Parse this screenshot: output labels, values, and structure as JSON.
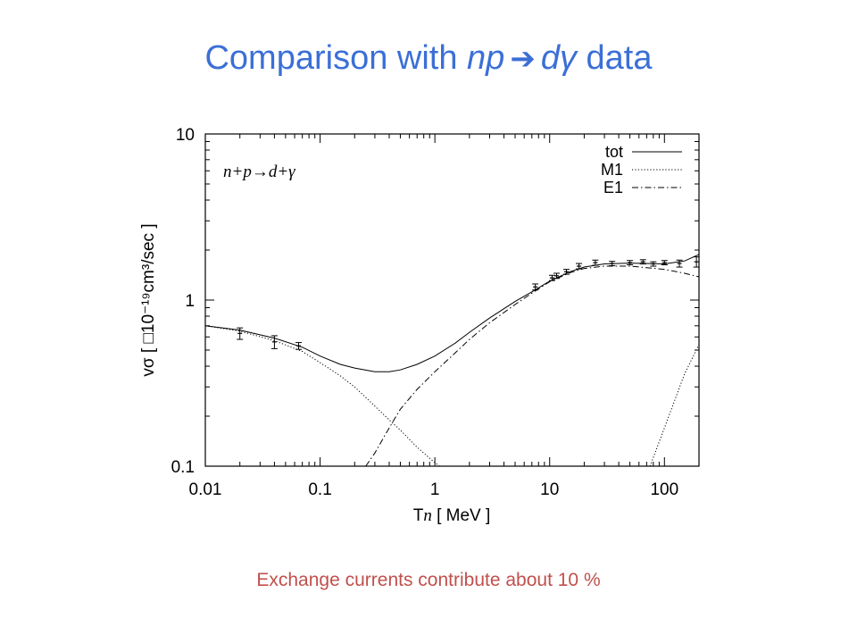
{
  "slide": {
    "title_prefix": "Comparison with ",
    "title_np": "np",
    "title_arrow": "➔",
    "title_dgamma": "dγ",
    "title_suffix": " data",
    "caption": "Exchange currents contribute about 10 %"
  },
  "chart_data": {
    "type": "line",
    "x_scale": "log",
    "y_scale": "log",
    "xlim": [
      0.01,
      200
    ],
    "ylim": [
      0.1,
      10
    ],
    "xlabel_prefix": "T",
    "xlabel_sub": "n",
    "xlabel_suffix": " [ MeV ]",
    "ylabel": "vσ [ □10⁻¹⁹cm³/sec ]",
    "x_ticks": [
      {
        "value": 0.01,
        "label": "0.01"
      },
      {
        "value": 0.1,
        "label": "0.1"
      },
      {
        "value": 1,
        "label": "1"
      },
      {
        "value": 10,
        "label": "10"
      },
      {
        "value": 100,
        "label": "100"
      }
    ],
    "y_ticks": [
      {
        "value": 0.1,
        "label": "0.1"
      },
      {
        "value": 1,
        "label": "1"
      },
      {
        "value": 10,
        "label": "10"
      }
    ],
    "annotation": "n+p→d+γ",
    "legend_position": "top-right",
    "series": [
      {
        "name": "tot",
        "style": "solid",
        "x": [
          0.01,
          0.02,
          0.04,
          0.07,
          0.1,
          0.15,
          0.2,
          0.3,
          0.4,
          0.5,
          0.7,
          1,
          1.5,
          2,
          3,
          5,
          7,
          10,
          15,
          20,
          30,
          50,
          100,
          150,
          200
        ],
        "y": [
          0.7,
          0.66,
          0.59,
          0.52,
          0.46,
          0.41,
          0.39,
          0.37,
          0.37,
          0.38,
          0.41,
          0.46,
          0.55,
          0.64,
          0.78,
          0.98,
          1.12,
          1.3,
          1.48,
          1.58,
          1.65,
          1.67,
          1.65,
          1.72,
          1.88
        ]
      },
      {
        "name": "M1",
        "style": "dotted",
        "x": [
          0.01,
          0.02,
          0.04,
          0.07,
          0.1,
          0.15,
          0.2,
          0.3,
          0.4,
          0.5,
          0.7,
          1.0,
          1.1
        ],
        "y": [
          0.7,
          0.65,
          0.57,
          0.49,
          0.42,
          0.35,
          0.3,
          0.23,
          0.19,
          0.165,
          0.13,
          0.105,
          0.1
        ],
        "x2": [
          75,
          100,
          150,
          200
        ],
        "y2": [
          0.1,
          0.17,
          0.36,
          0.54
        ]
      },
      {
        "name": "E1",
        "style": "dashdot",
        "x": [
          0.25,
          0.3,
          0.4,
          0.5,
          0.7,
          1,
          1.5,
          2,
          3,
          5,
          7,
          10,
          15,
          20,
          30,
          50,
          100,
          150,
          200
        ],
        "y": [
          0.1,
          0.12,
          0.17,
          0.22,
          0.29,
          0.37,
          0.48,
          0.58,
          0.73,
          0.94,
          1.1,
          1.29,
          1.46,
          1.55,
          1.6,
          1.6,
          1.53,
          1.45,
          1.38
        ]
      }
    ],
    "data_points": [
      {
        "x": 0.02,
        "y": 0.63,
        "err": 0.05
      },
      {
        "x": 0.04,
        "y": 0.56,
        "err": 0.05
      },
      {
        "x": 0.065,
        "y": 0.53,
        "err": 0.025
      },
      {
        "x": 7.5,
        "y": 1.2,
        "err": 0.05
      },
      {
        "x": 10.5,
        "y": 1.36,
        "err": 0.05
      },
      {
        "x": 11.5,
        "y": 1.4,
        "err": 0.05
      },
      {
        "x": 14,
        "y": 1.48,
        "err": 0.05
      },
      {
        "x": 18,
        "y": 1.6,
        "err": 0.06
      },
      {
        "x": 25,
        "y": 1.68,
        "err": 0.06
      },
      {
        "x": 35,
        "y": 1.66,
        "err": 0.05
      },
      {
        "x": 50,
        "y": 1.68,
        "err": 0.05
      },
      {
        "x": 65,
        "y": 1.7,
        "err": 0.05
      },
      {
        "x": 80,
        "y": 1.65,
        "err": 0.05
      },
      {
        "x": 100,
        "y": 1.68,
        "err": 0.05
      },
      {
        "x": 135,
        "y": 1.66,
        "err": 0.08
      },
      {
        "x": 190,
        "y": 1.7,
        "err": 0.12
      }
    ]
  }
}
